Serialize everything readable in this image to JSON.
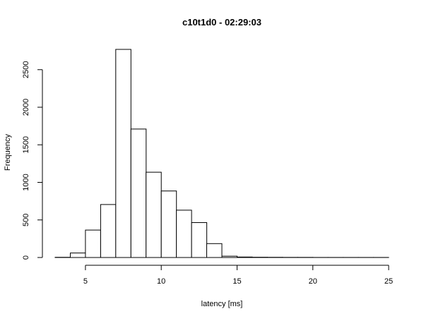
{
  "chart_data": {
    "type": "bar",
    "title": "c10t1d0 - 02:29:03",
    "xlabel": "latency [ms]",
    "ylabel": "Frequency",
    "xlim": [
      3,
      25
    ],
    "ylim": [
      0,
      2770
    ],
    "bin_width": 1,
    "bins": [
      {
        "x0": 3,
        "x1": 4,
        "value": 3
      },
      {
        "x0": 4,
        "x1": 5,
        "value": 60
      },
      {
        "x0": 5,
        "x1": 6,
        "value": 365
      },
      {
        "x0": 6,
        "x1": 7,
        "value": 705
      },
      {
        "x0": 7,
        "x1": 8,
        "value": 2770
      },
      {
        "x0": 8,
        "x1": 9,
        "value": 1710
      },
      {
        "x0": 9,
        "x1": 10,
        "value": 1135
      },
      {
        "x0": 10,
        "x1": 11,
        "value": 885
      },
      {
        "x0": 11,
        "x1": 12,
        "value": 630
      },
      {
        "x0": 12,
        "x1": 13,
        "value": 465
      },
      {
        "x0": 13,
        "x1": 14,
        "value": 185
      },
      {
        "x0": 14,
        "x1": 15,
        "value": 18
      },
      {
        "x0": 15,
        "x1": 16,
        "value": 7
      },
      {
        "x0": 16,
        "x1": 17,
        "value": 4
      },
      {
        "x0": 17,
        "x1": 18,
        "value": 3
      },
      {
        "x0": 18,
        "x1": 19,
        "value": 2
      },
      {
        "x0": 19,
        "x1": 20,
        "value": 2
      },
      {
        "x0": 20,
        "x1": 21,
        "value": 1
      },
      {
        "x0": 21,
        "x1": 22,
        "value": 1
      },
      {
        "x0": 22,
        "x1": 23,
        "value": 1
      },
      {
        "x0": 23,
        "x1": 24,
        "value": 1
      },
      {
        "x0": 24,
        "x1": 25,
        "value": 1
      }
    ],
    "x_ticks": [
      5,
      10,
      15,
      20,
      25
    ],
    "x_tick_labels": [
      "5",
      "10",
      "15",
      "20",
      "25"
    ],
    "y_ticks": [
      0,
      500,
      1000,
      1500,
      2000,
      2500
    ],
    "y_tick_labels": [
      "0",
      "500",
      "1000",
      "1500",
      "2000",
      "2500"
    ],
    "grid": false,
    "bar_fill": "#ffffff",
    "bar_stroke": "#000000"
  }
}
